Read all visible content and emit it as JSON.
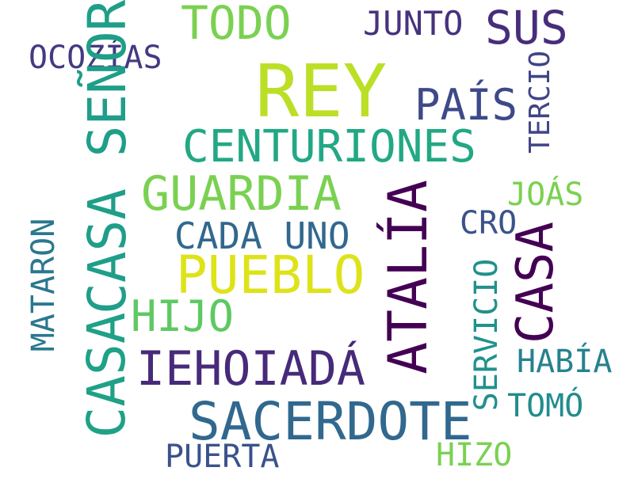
{
  "colors": {
    "background": "#ffffff",
    "rey": "#bbdf27",
    "todo": "#7ad151",
    "junto": "#46327e",
    "sus": "#472d7b",
    "ocozias": "#443a83",
    "pais": "#3e4989",
    "tercio": "#414487",
    "centuriones": "#22a884",
    "casa_senor": "#1f9e89",
    "guardia": "#7ad151",
    "atalia": "#440154",
    "joas": "#7ad151",
    "mataron": "#2a788e",
    "cada_uno": "#31688e",
    "cro": "#3b528b",
    "pueblo": "#dde318",
    "casa_right": "#440154",
    "hijo": "#5ec962",
    "servicio": "#21918c",
    "casa_left": "#1fa187",
    "iehoiada": "#472a7a",
    "habia": "#26828e",
    "tomo": "#228c8d",
    "sacerdote": "#31688e",
    "puerta": "#3b528b",
    "hizo": "#7ad151"
  },
  "words": {
    "rey": "REY",
    "todo": "TODO",
    "junto": "JUNTO",
    "sus": "SUS",
    "ocozias": "OCOZÍAS",
    "pais": "PAÍS",
    "tercio": "TERCIO",
    "centuriones": "CENTURIONES",
    "casa_senor": "CASA SEÑOR",
    "guardia": "GUARDIA",
    "atalia": "ATALÍA",
    "joas": "JOÁS",
    "mataron": "MATARON",
    "cada_uno": "CADA UNO",
    "cro": "CRO",
    "pueblo": "PUEBLO",
    "casa_right": "CASA",
    "hijo": "HIJO",
    "servicio": "SERVICIO",
    "casa_left": "CASA",
    "iehoiada": "IEHOIADÁ",
    "habia": "HABÍA",
    "tomo": "TOMÓ",
    "sacerdote": "SACERDOTE",
    "puerta": "PUERTA",
    "hizo": "HIZO"
  }
}
